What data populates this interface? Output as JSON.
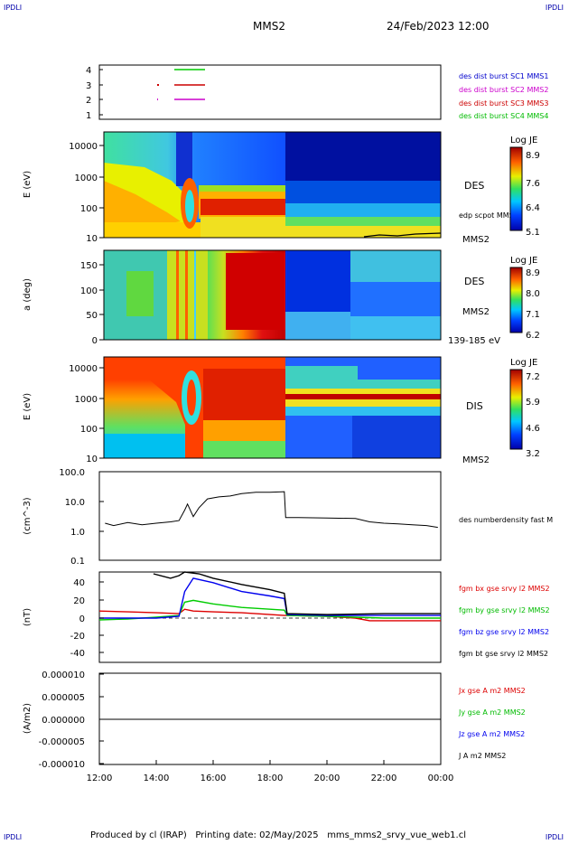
{
  "header": {
    "corner_left": "IPDLI",
    "corner_right": "IPDLI",
    "spacecraft": "MMS2",
    "datetime": "24/Feb/2023 12:00"
  },
  "footer": {
    "text": "Produced by cl (IRAP)   Printing date: 02/May/2025   mms_mms2_srvy_vue_web1.cl",
    "corner_left": "IPDLI",
    "corner_right": "IPDLI"
  },
  "colors": {
    "mms1": "#0000cc",
    "mms2": "#cc00cc",
    "mms3": "#cc0000",
    "mms4": "#00bb00",
    "bx": "#dd0000",
    "by": "#00cc00",
    "bz": "#0000ee",
    "bt": "#000000"
  },
  "panels": {
    "sc": {
      "ticks": [
        "1",
        "2",
        "3",
        "4"
      ],
      "legend": [
        "des dist burst SC1 MMS1",
        "des dist burst SC2 MMS2",
        "des dist burst SC3 MMS3",
        "des dist burst SC4 MMS4"
      ]
    },
    "des_e": {
      "ylabel": "E (eV)",
      "ticks": [
        "10000",
        "1000",
        "100",
        "10"
      ],
      "side_label": "DES",
      "sub_label": "edp scpot MMS2",
      "sc_label": "MMS2",
      "cbar_title": "Log JE",
      "cbar_ticks": [
        "8.9",
        "7.6",
        "6.4",
        "5.1"
      ]
    },
    "des_pa": {
      "ylabel": "a (deg)",
      "ticks": [
        "150",
        "100",
        "50",
        "0"
      ],
      "side_label": "DES",
      "sc_label": "MMS2",
      "range_label": "139-185 eV",
      "cbar_title": "Log JE",
      "cbar_ticks": [
        "8.9",
        "8.0",
        "7.1",
        "6.2"
      ]
    },
    "dis_e": {
      "ylabel": "E (eV)",
      "ticks": [
        "10000",
        "1000",
        "100",
        "10"
      ],
      "side_label": "DIS",
      "sc_label": "MMS2",
      "cbar_title": "Log JE",
      "cbar_ticks": [
        "7.2",
        "5.9",
        "4.6",
        "3.2"
      ]
    },
    "density": {
      "ylabel": "(cm^-3)",
      "ticks": [
        "100.0",
        "10.0",
        "1.0",
        "0.1"
      ],
      "legend": "des numberdensity fast M"
    },
    "field": {
      "ylabel": "(nT)",
      "ticks": [
        "40",
        "20",
        "0",
        "-20",
        "-40"
      ],
      "legend": [
        "fgm bx gse srvy l2 MMS2",
        "fgm by gse srvy l2 MMS2",
        "fgm bz gse srvy l2 MMS2",
        "fgm bt gse srvy l2 MMS2"
      ]
    },
    "current": {
      "ylabel": "(A/m2)",
      "ticks": [
        "0.000010",
        "0.000005",
        "0.000000",
        "-0.000005",
        "-0.000010"
      ],
      "legend": [
        "Jx gse A m2 MMS2",
        "Jy gse A m2 MMS2",
        "Jz gse A m2 MMS2",
        "J A m2 MMS2"
      ]
    }
  },
  "xaxis": {
    "ticks": [
      "12:00",
      "14:00",
      "16:00",
      "18:00",
      "20:00",
      "22:00",
      "00:00"
    ]
  },
  "chart_data": [
    {
      "type": "line",
      "title": "",
      "ylabel": "",
      "ylim": [
        0.5,
        4.5
      ],
      "series": [
        {
          "name": "des dist burst SC1 MMS1",
          "x": [
            15.1,
            15.9
          ],
          "y": [
            4,
            4
          ]
        },
        {
          "name": "des dist burst SC2 MMS2",
          "x": [
            15.1,
            15.9
          ],
          "y": [
            2,
            2
          ]
        },
        {
          "name": "des dist burst SC3 MMS3",
          "x": [
            15.1,
            15.9
          ],
          "y": [
            3,
            3
          ]
        },
        {
          "name": "des dist burst SC4 MMS4",
          "x": [
            15.1,
            15.9
          ],
          "y": [
            4,
            4
          ]
        }
      ]
    },
    {
      "type": "heatmap",
      "ylabel": "E (eV)",
      "yscale": "log",
      "ylim": [
        10,
        30000
      ],
      "xlim": [
        12,
        24
      ],
      "colorbar": {
        "title": "Log JE",
        "range": [
          5.1,
          8.9
        ]
      },
      "series": [
        {
          "name": "edp scpot MMS2",
          "x": [
            21.3,
            22,
            23,
            24
          ],
          "y": [
            11,
            12,
            12,
            13
          ]
        }
      ]
    },
    {
      "type": "heatmap",
      "ylabel": "a (deg)",
      "ylim": [
        0,
        180
      ],
      "xlim": [
        12,
        24
      ],
      "energy_range": "139-185 eV",
      "colorbar": {
        "title": "Log JE",
        "range": [
          6.2,
          8.9
        ]
      }
    },
    {
      "type": "heatmap",
      "ylabel": "E (eV)",
      "yscale": "log",
      "ylim": [
        10,
        30000
      ],
      "xlim": [
        12,
        24
      ],
      "colorbar": {
        "title": "Log JE",
        "range": [
          3.2,
          7.2
        ]
      }
    },
    {
      "type": "line",
      "ylabel": "(cm^-3)",
      "yscale": "log",
      "ylim": [
        0.1,
        100
      ],
      "series": [
        {
          "name": "des numberdensity fast M",
          "x": [
            12.2,
            12.5,
            13.0,
            13.5,
            14.0,
            14.5,
            14.8,
            15.0,
            15.1,
            15.3,
            15.5,
            15.8,
            16.2,
            16.6,
            17.0,
            17.5,
            18.0,
            18.5,
            18.55,
            19.0,
            20.0,
            21.0,
            21.5,
            22.0,
            22.5,
            23.0,
            23.5,
            23.9
          ],
          "y": [
            1.8,
            1.5,
            1.9,
            1.6,
            1.8,
            2.0,
            2.2,
            5.0,
            8.0,
            3.0,
            6.0,
            12.0,
            14.0,
            15.0,
            18.0,
            20.0,
            20.0,
            21.0,
            2.8,
            2.8,
            2.7,
            2.6,
            2.0,
            1.8,
            1.7,
            1.6,
            1.5,
            1.3
          ]
        }
      ]
    },
    {
      "type": "line",
      "ylabel": "(nT)",
      "ylim": [
        -50,
        50
      ],
      "series": [
        {
          "name": "fgm bx gse srvy l2 MMS2",
          "x": [
            12.0,
            13.0,
            14.0,
            14.8,
            15.0,
            15.3,
            16.0,
            17.0,
            18.0,
            18.5,
            18.6,
            20.0,
            21.0,
            21.5,
            22.5,
            24.0
          ],
          "y": [
            8,
            7,
            6,
            5,
            10,
            8,
            7,
            6,
            4,
            3,
            3,
            2,
            0,
            -3,
            -3,
            -3
          ]
        },
        {
          "name": "fgm by gse srvy l2 MMS2",
          "x": [
            12.0,
            13.0,
            14.0,
            14.8,
            15.0,
            15.3,
            16.0,
            17.0,
            18.0,
            18.5,
            18.6,
            20.0,
            21.0,
            22.0,
            24.0
          ],
          "y": [
            -2,
            -1,
            1,
            3,
            18,
            20,
            16,
            12,
            10,
            9,
            3,
            2,
            1,
            0,
            0
          ]
        },
        {
          "name": "fgm bz gse srvy l2 MMS2",
          "x": [
            12.0,
            14.0,
            14.8,
            15.0,
            15.3,
            16.0,
            17.0,
            18.0,
            18.5,
            18.6,
            20.0,
            22.0,
            24.0
          ],
          "y": [
            0,
            0,
            2,
            30,
            45,
            40,
            30,
            25,
            22,
            4,
            3,
            3,
            3
          ]
        },
        {
          "name": "fgm bt gse srvy l2 MMS2",
          "x": [
            13.9,
            14.5,
            14.8,
            15.0,
            15.5,
            16.0,
            17.0,
            18.0,
            18.5,
            18.6,
            20.0,
            22.0,
            24.0
          ],
          "y": [
            50,
            45,
            48,
            52,
            50,
            45,
            38,
            32,
            28,
            5,
            4,
            5,
            5
          ]
        }
      ]
    },
    {
      "type": "line",
      "ylabel": "(A/m2)",
      "ylim": [
        -1e-05,
        1e-05
      ],
      "series": [
        {
          "name": "Jx gse A m2 MMS2",
          "x": [
            12,
            24
          ],
          "y": [
            0,
            0
          ]
        },
        {
          "name": "Jy gse A m2 MMS2",
          "x": [
            12,
            24
          ],
          "y": [
            0,
            0
          ]
        },
        {
          "name": "Jz gse A m2 MMS2",
          "x": [
            12,
            24
          ],
          "y": [
            0,
            0
          ]
        },
        {
          "name": "J A m2 MMS2",
          "x": [
            12,
            24
          ],
          "y": [
            0,
            0
          ]
        }
      ]
    }
  ]
}
